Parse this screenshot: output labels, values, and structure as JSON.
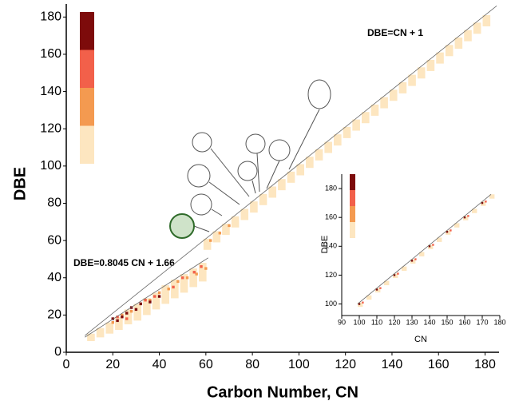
{
  "chart_data": [
    {
      "type": "scatter",
      "xlabel": "Carbon Number, CN",
      "ylabel": "DBE",
      "xlim": [
        0,
        186
      ],
      "ylim": [
        0,
        187
      ],
      "xticks": [
        0,
        20,
        40,
        60,
        80,
        100,
        120,
        140,
        160,
        180
      ],
      "yticks": [
        0,
        20,
        40,
        60,
        80,
        100,
        120,
        140,
        160,
        180
      ],
      "annotations": [
        "DBE=CN + 1",
        "DBE=0.8045 CN + 1.66"
      ],
      "colorbar": [
        "#7d0b0b",
        "#f2604a",
        "#f49a50",
        "#fde6c0"
      ],
      "lines": [
        {
          "x": [
            8,
            185
          ],
          "y": [
            9,
            186
          ]
        },
        {
          "x": [
            8,
            61
          ],
          "y": [
            8.1,
            50.7
          ]
        }
      ],
      "bands": [
        {
          "color": "#fde6c0",
          "x": [
            60,
            64,
            68,
            72,
            76,
            80,
            84,
            88,
            92,
            96,
            100,
            104,
            108,
            112,
            116,
            120,
            124,
            128,
            132,
            136,
            140,
            144,
            148,
            152,
            156,
            160,
            164,
            168,
            172,
            176,
            180
          ],
          "high": [
            61,
            65,
            69,
            73,
            77,
            81,
            85,
            89,
            93,
            97,
            101,
            105,
            109,
            113,
            117,
            121,
            125,
            129,
            133,
            137,
            141,
            145,
            149,
            153,
            157,
            161,
            165,
            169,
            173,
            177,
            181
          ],
          "low": [
            55,
            59,
            63,
            67,
            71,
            75,
            79,
            83,
            87,
            91,
            95,
            99,
            103,
            107,
            111,
            115,
            119,
            123,
            127,
            131,
            135,
            139,
            143,
            147,
            151,
            155,
            159,
            163,
            167,
            171,
            175
          ]
        },
        {
          "color": "#fde6c0",
          "x": [
            10,
            14,
            18,
            22,
            26,
            30,
            34,
            38,
            42,
            46,
            50,
            54,
            58
          ],
          "high": [
            10,
            13,
            16,
            19,
            23,
            26,
            29,
            32,
            36,
            39,
            42,
            45,
            48
          ],
          "low": [
            6,
            8,
            10,
            12,
            15,
            17,
            20,
            23,
            26,
            29,
            32,
            35,
            38
          ]
        }
      ],
      "points": [
        {
          "color": "#f49a50",
          "x": [
            20,
            24,
            28,
            32,
            36,
            40,
            44,
            48,
            52,
            56,
            60,
            62,
            66,
            70
          ],
          "y": [
            16,
            20,
            22,
            26,
            28,
            32,
            34,
            38,
            40,
            42,
            45,
            60,
            64,
            68
          ]
        },
        {
          "color": "#f2604a",
          "x": [
            22,
            26,
            34,
            38,
            46,
            50,
            55,
            58
          ],
          "y": [
            19,
            18,
            28,
            30,
            35,
            40,
            43,
            46
          ]
        },
        {
          "color": "#7d0b0b",
          "x": [
            20,
            22,
            24,
            26,
            28,
            30,
            32,
            36,
            40
          ],
          "y": [
            18,
            17,
            19,
            21,
            24,
            23,
            26,
            27,
            30
          ]
        }
      ]
    },
    {
      "type": "scatter",
      "xlabel": "CN",
      "ylabel": "DBE",
      "xlim": [
        90,
        180
      ],
      "ylim": [
        92,
        190
      ],
      "xticks": [
        90,
        100,
        110,
        120,
        130,
        140,
        150,
        160,
        170,
        180
      ],
      "yticks": [
        100,
        120,
        140,
        160,
        180
      ],
      "colorbar": [
        "#7d0b0b",
        "#f2604a",
        "#f49a50",
        "#fde6c0"
      ],
      "lines": [
        {
          "x": [
            99,
            175
          ],
          "y": [
            100,
            176
          ]
        }
      ],
      "bands": [
        {
          "color": "#fde6c0",
          "x": [
            100,
            105,
            110,
            115,
            120,
            125,
            130,
            135,
            140,
            145,
            150,
            155,
            160,
            165,
            170,
            175
          ],
          "high": [
            101,
            106,
            111,
            116,
            121,
            126,
            131,
            136,
            141,
            146,
            151,
            156,
            161,
            166,
            171,
            176
          ],
          "low": [
            98,
            103,
            108,
            113,
            118,
            123,
            128,
            133,
            138,
            143,
            148,
            153,
            158,
            163,
            168,
            173
          ]
        }
      ],
      "points": [
        {
          "color": "#f2604a",
          "x": [
            102,
            112,
            122,
            132,
            142,
            152,
            162,
            172
          ],
          "y": [
            101,
            111,
            121,
            131,
            141,
            151,
            161,
            171
          ]
        },
        {
          "color": "#7d0b0b",
          "x": [
            100,
            110,
            120,
            130,
            140,
            150,
            160,
            170
          ],
          "y": [
            100,
            110,
            120,
            130,
            140,
            150,
            160,
            170
          ]
        }
      ]
    }
  ]
}
